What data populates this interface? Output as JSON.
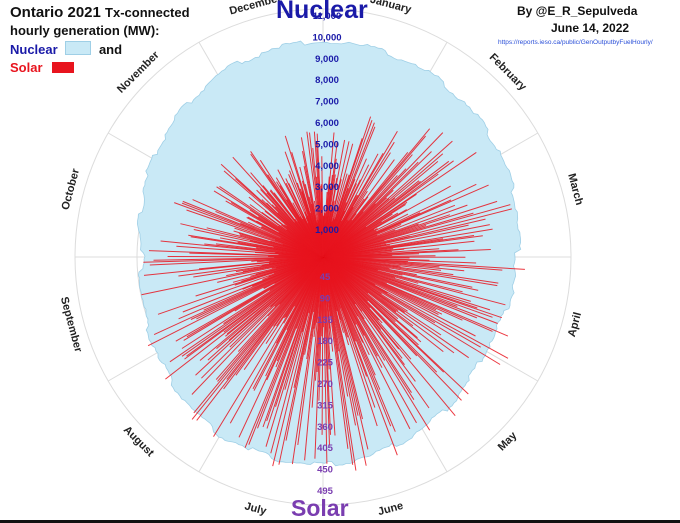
{
  "header": {
    "title_main": "Ontario 2021",
    "title_rest": "Tx-connected",
    "title_line2": "hourly generation (MW):",
    "legend_nuclear": "Nuclear",
    "legend_and": "and",
    "legend_solar": "Solar",
    "author": "By @E_R_Sepulveda",
    "date": "June 14, 2022",
    "source": "https://reports.ieso.ca/public/GenOutputbyFuelHourly/"
  },
  "labels": {
    "nuclear_big": "Nuclear",
    "solar_big": "Solar"
  },
  "colors": {
    "nuclear_fill": "#c9e9f6",
    "nuclear_edge": "#9fcfe6",
    "solar_line": "#e8141e",
    "title_blue": "#1a1aa8",
    "solar_purple": "#7a3db0",
    "source_blue": "#2a4fd8"
  },
  "chart_data": {
    "type": "radial",
    "months": [
      "January",
      "February",
      "March",
      "April",
      "May",
      "June",
      "July",
      "August",
      "September",
      "October",
      "November",
      "December"
    ],
    "nuclear_ticks": [
      "1,000",
      "2,000",
      "3,000",
      "4,000",
      "5,000",
      "6,000",
      "7,000",
      "8,000",
      "9,000",
      "10,000",
      "11,000"
    ],
    "solar_ticks": [
      "45",
      "90",
      "135",
      "180",
      "225",
      "270",
      "315",
      "360",
      "405",
      "450",
      "495"
    ],
    "nuclear_range": [
      0,
      11000
    ],
    "solar_range": [
      0,
      495
    ],
    "series": [
      {
        "name": "Nuclear",
        "monthly_mw": [
          9600,
          9400,
          9100,
          8600,
          8300,
          8800,
          9200,
          9100,
          8500,
          8000,
          8700,
          9300
        ]
      },
      {
        "name": "Solar",
        "monthly_peak_mw": [
          260,
          330,
          380,
          410,
          430,
          420,
          440,
          430,
          400,
          360,
          300,
          250
        ]
      }
    ]
  }
}
